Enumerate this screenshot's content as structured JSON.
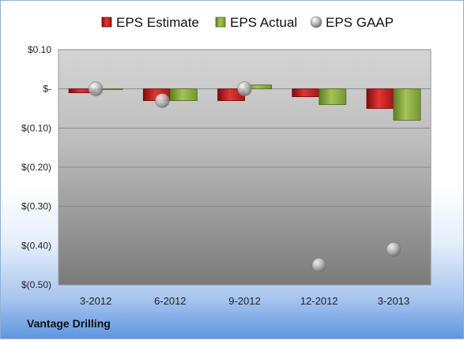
{
  "company": "Vantage Drilling",
  "colors": {
    "estimate": "#d42020",
    "actual": "#8fb441",
    "gaap": "#b5b5b5"
  },
  "chart_data": {
    "type": "bar",
    "categories": [
      "3-2012",
      "6-2012",
      "9-2012",
      "12-2012",
      "3-2013"
    ],
    "series": [
      {
        "name": "EPS Estimate",
        "kind": "bar",
        "values": [
          -0.01,
          -0.03,
          -0.03,
          -0.02,
          -0.05
        ]
      },
      {
        "name": "EPS Actual",
        "kind": "bar",
        "values": [
          0.0,
          -0.03,
          0.01,
          -0.04,
          -0.08
        ]
      },
      {
        "name": "EPS GAAP",
        "kind": "marker",
        "values": [
          0.0,
          -0.03,
          0.0,
          -0.45,
          -0.41
        ]
      }
    ],
    "ylim": [
      -0.5,
      0.1
    ],
    "yticks": [
      {
        "value": 0.1,
        "label": "$0.10"
      },
      {
        "value": 0.0,
        "label": "$-"
      },
      {
        "value": -0.1,
        "label": "$(0.10)"
      },
      {
        "value": -0.2,
        "label": "$(0.20)"
      },
      {
        "value": -0.3,
        "label": "$(0.30)"
      },
      {
        "value": -0.4,
        "label": "$(0.40)"
      },
      {
        "value": -0.5,
        "label": "$(0.50)"
      }
    ],
    "grid": true,
    "legend": "top"
  }
}
